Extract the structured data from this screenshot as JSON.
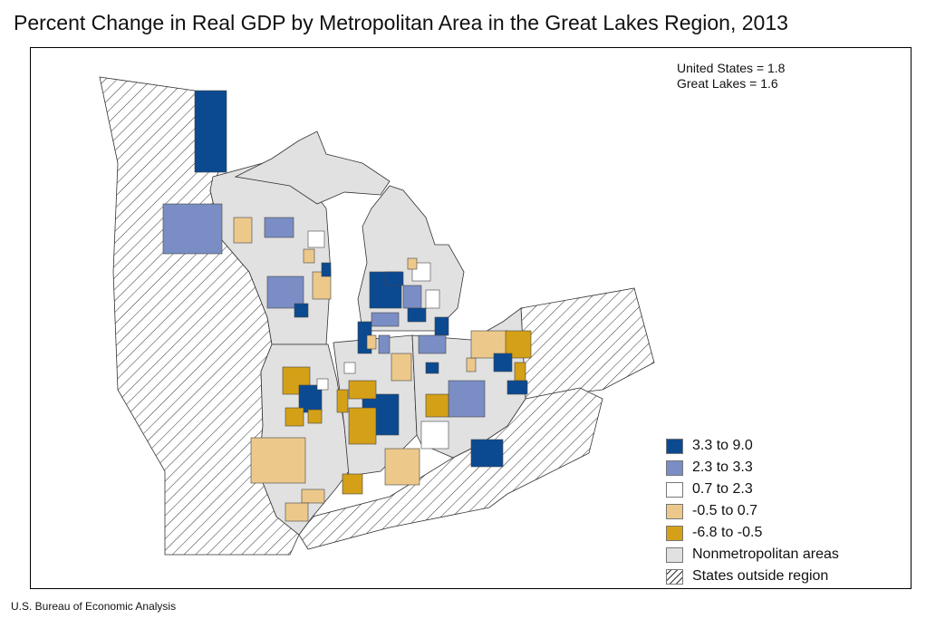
{
  "title": "Percent Change in Real GDP by Metropolitan Area in the Great Lakes Region, 2013",
  "notes": [
    "United States = 1.8",
    "Great Lakes = 1.6"
  ],
  "legend": [
    {
      "label": "3.3 to 9.0",
      "color": "#0b4a91"
    },
    {
      "label": "2.3 to 3.3",
      "color": "#7a8ec5"
    },
    {
      "label": "0.7 to 2.3",
      "color": "#ffffff"
    },
    {
      "label": "-0.5 to 0.7",
      "color": "#ecc98b"
    },
    {
      "label": "-6.8 to -0.5",
      "color": "#d4a017"
    },
    {
      "label": "Nonmetropolitan areas",
      "color": "#e1e1e1"
    },
    {
      "label": "States outside region",
      "color": "hatch"
    }
  ],
  "source": "U.S. Bureau of Economic Analysis"
}
